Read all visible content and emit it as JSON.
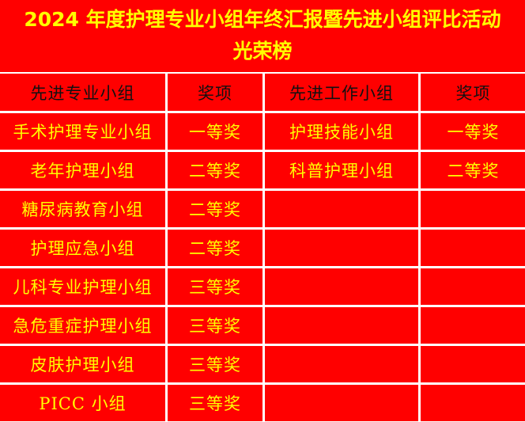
{
  "title": {
    "line1": "2024 年度护理专业小组年终汇报暨先进小组评比活动",
    "line2": "光荣榜"
  },
  "headers": [
    "先进专业小组",
    "奖项",
    "先进工作小组",
    "奖项"
  ],
  "rows": [
    [
      "手术护理专业小组",
      "一等奖",
      "护理技能小组",
      "一等奖"
    ],
    [
      "老年护理小组",
      "二等奖",
      "科普护理小组",
      "二等奖"
    ],
    [
      "糖尿病教育小组",
      "二等奖",
      "",
      ""
    ],
    [
      "护理应急小组",
      "二等奖",
      "",
      ""
    ],
    [
      "儿科专业护理小组",
      "三等奖",
      "",
      ""
    ],
    [
      "急危重症护理小组",
      "三等奖",
      "",
      ""
    ],
    [
      "皮肤护理小组",
      "三等奖",
      "",
      ""
    ],
    [
      "PICC 小组",
      "三等奖",
      "",
      ""
    ]
  ],
  "colors": {
    "background": "#ff0000",
    "text": "#ffff00",
    "header_text": "#111111",
    "grid_lines": "#ffffff"
  }
}
